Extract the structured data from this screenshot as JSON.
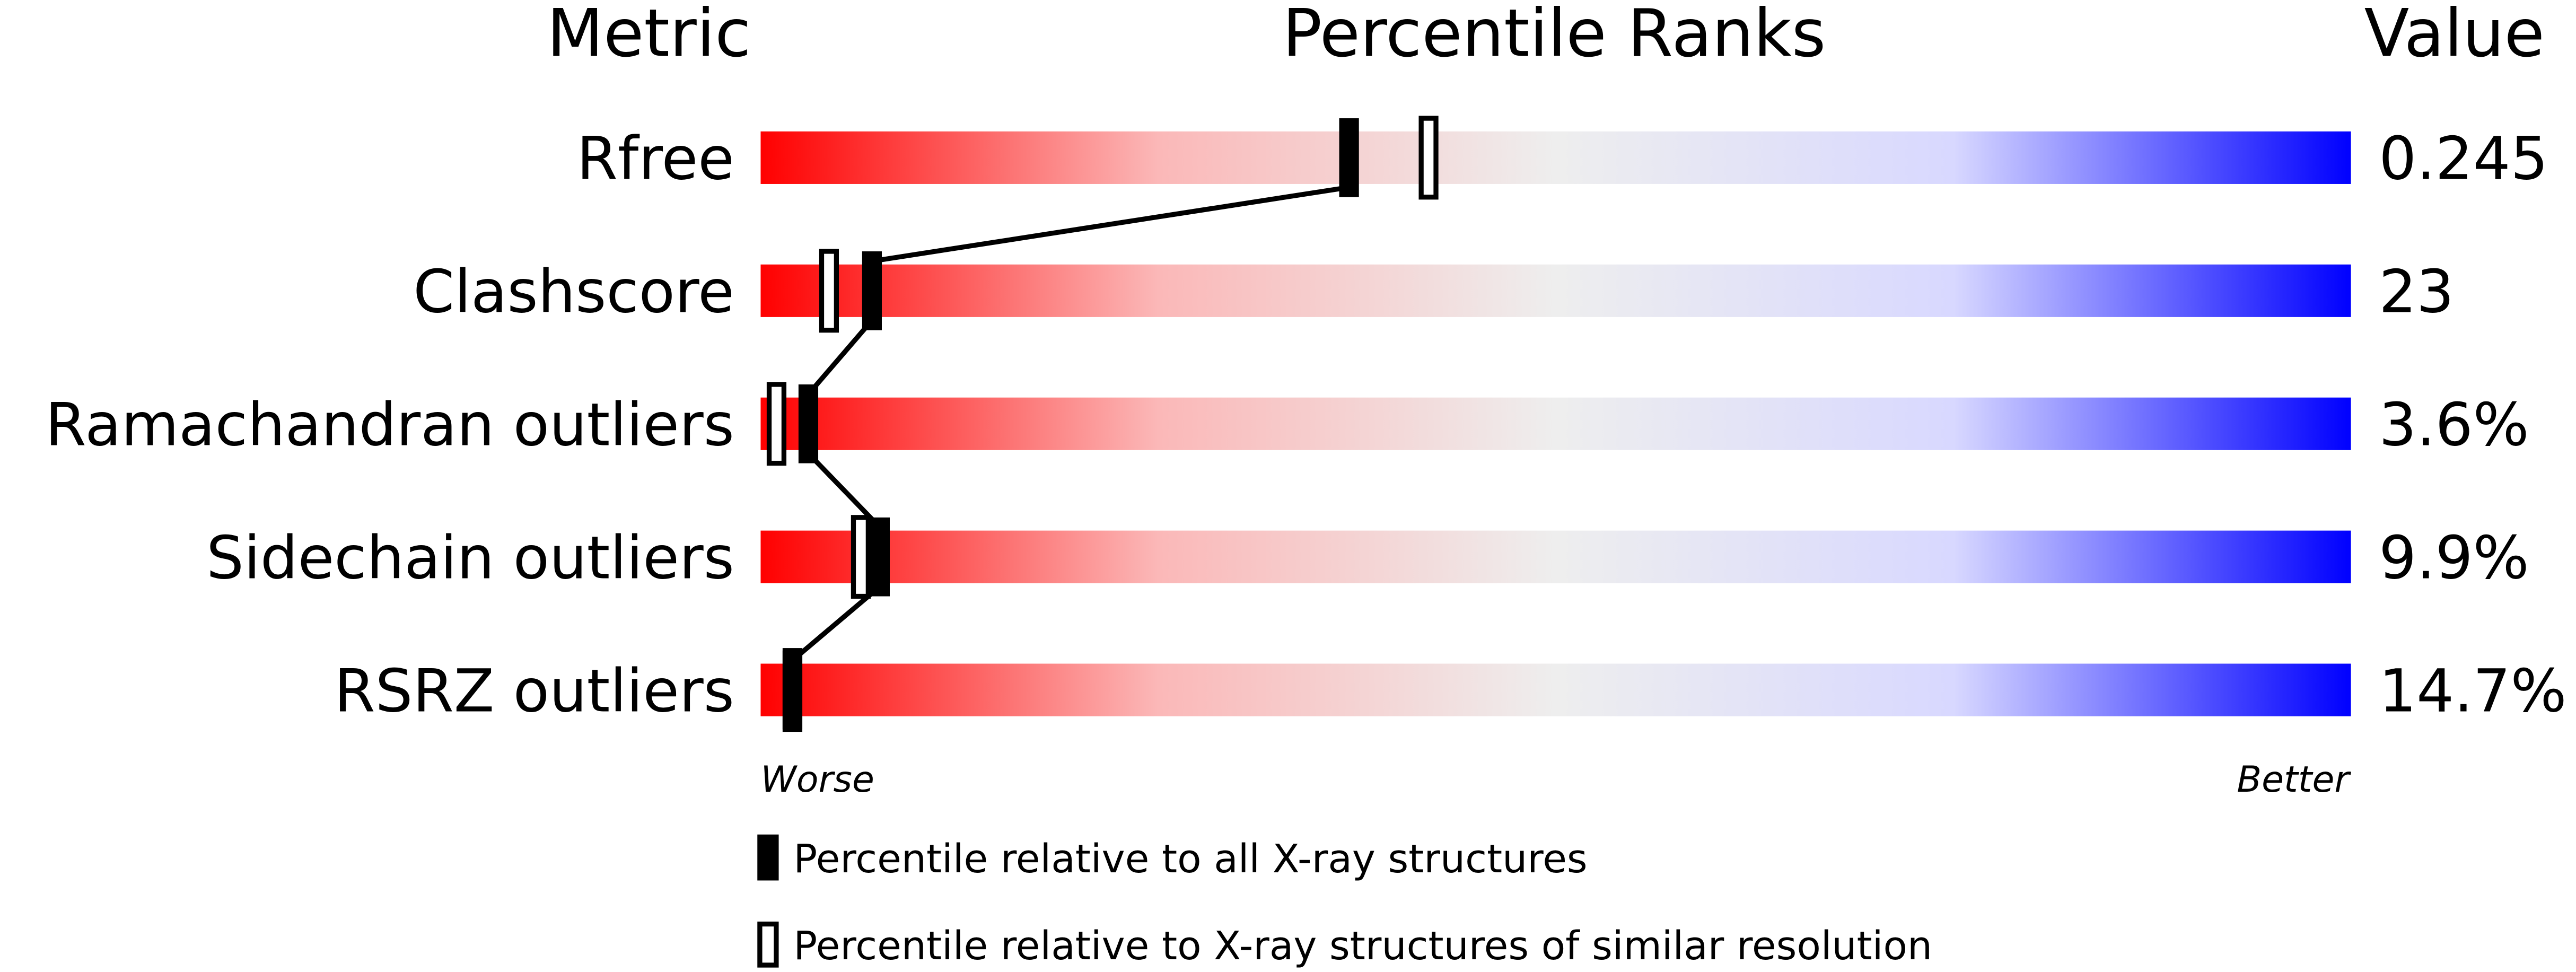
{
  "chart_data": {
    "type": "percentile",
    "headers": [
      "Metric",
      "Percentile Ranks",
      "Value"
    ],
    "categories": [
      "Rfree",
      "Clashscore",
      "Ramachandran outliers",
      "Sidechain outliers",
      "RSRZ outliers"
    ],
    "series": [
      {
        "name": "Percentile relative to all X-ray structures",
        "color": "#000000",
        "fill": true,
        "values": [
          37,
          7,
          3,
          7.5,
          2
        ]
      },
      {
        "name": "Percentile relative to X-ray structures of similar resolution",
        "color": "#000000",
        "fill": false,
        "values": [
          42,
          4.3,
          1,
          6.3,
          2
        ]
      }
    ],
    "metric_values": {
      "values": [
        0.245,
        23,
        3.6,
        9.9,
        14.7
      ],
      "value_labels": [
        "0.245",
        "23",
        "3.6%",
        "9.9%",
        "14.7%"
      ]
    },
    "xlim": [
      0,
      100
    ],
    "xlabel_left": "Worse",
    "xlabel_right": "Better",
    "gradient": [
      "#ff0000",
      "#fbb8b8",
      "#eeeeee",
      "#d8d8ff",
      "#0000ff"
    ]
  }
}
